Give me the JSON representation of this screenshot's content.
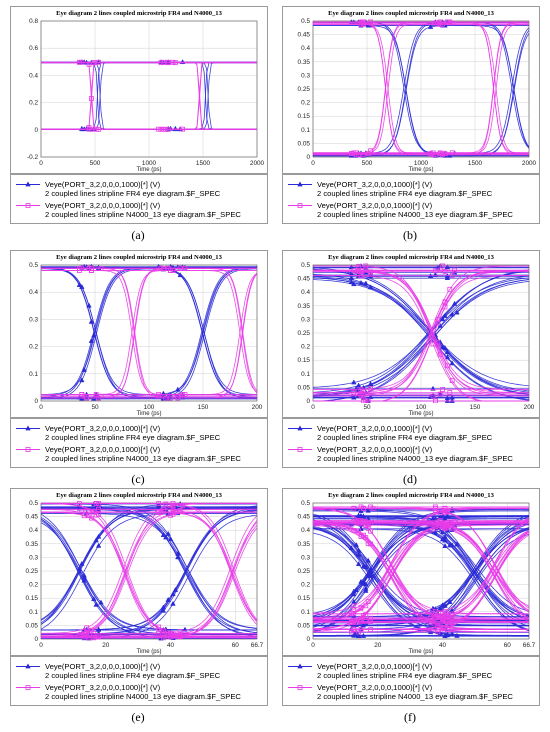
{
  "chart_data": [
    {
      "type": "line",
      "panel": "a",
      "caption": "(a)",
      "title": "Eye diagram 2 lines coupled microstrip FR4 and N4000_13",
      "xlabel": "Time (ps)",
      "ylabel": "",
      "xlim": [
        0,
        2000
      ],
      "ylim": [
        -0.2,
        0.8
      ],
      "xticks": [
        "0",
        "500",
        "1000",
        "1500",
        "2000"
      ],
      "yticks": [
        "-0.2",
        "0",
        "0.2",
        "0.4",
        "0.6",
        "0.8"
      ],
      "grid": true,
      "eye": {
        "low": 0.005,
        "high": 0.495,
        "width": 2000,
        "period": 1000,
        "crossings": [
          500,
          1500
        ],
        "spread": 0.005
      },
      "series": [
        {
          "name": "Veye(PORT_3,2,0,0,0,1000)[*] (V)",
          "subtitle": "2 coupled lines stripline FR4 eye diagram.$F_SPEC",
          "color": "#2b2bd6",
          "marker": "triangle",
          "rise": 40,
          "offset": 40,
          "traces": 2
        },
        {
          "name": "Veye(PORT_3,2,0,0,0,1000)[*] (V)",
          "subtitle": "2 coupled lines stripline N4000_13  eye diagram.$F_SPEC",
          "color": "#e83ce8",
          "marker": "square",
          "rise": 40,
          "offset": -40,
          "traces": 2
        }
      ]
    },
    {
      "type": "line",
      "panel": "b",
      "caption": "(b)",
      "title": "Eye diagram 2 lines coupled microstrip FR4 and N4000_13",
      "xlabel": "Time (ps)",
      "ylabel": "",
      "xlim": [
        0,
        2000
      ],
      "ylim": [
        0,
        0.5
      ],
      "xticks": [
        "0",
        "500",
        "1000",
        "1500",
        "2000"
      ],
      "yticks": [
        "0",
        "0.05",
        "0.1",
        "0.15",
        "0.2",
        "0.25",
        "0.3",
        "0.35",
        "0.4",
        "0.45",
        "0.5"
      ],
      "grid": true,
      "eye": {
        "low": 0.01,
        "high": 0.49,
        "width": 2000,
        "period": 1000,
        "crossings": [
          600,
          1600
        ],
        "spread": 0.015
      },
      "series": [
        {
          "name": "Veye(PORT_3,2,0,0,0,1000)[*] (V)",
          "subtitle": "2 coupled lines stripline FR4 eye diagram.$F_SPEC",
          "color": "#2b2bd6",
          "marker": "triangle",
          "rise": 300,
          "offset": 250,
          "traces": 3
        },
        {
          "name": "Veye(PORT_3,2,0,0,0,1000)[*] (V)",
          "subtitle": "2 coupled lines stripline N4000_13  eye diagram.$F_SPEC",
          "color": "#e83ce8",
          "marker": "square",
          "rise": 200,
          "offset": 80,
          "traces": 3
        }
      ]
    },
    {
      "type": "line",
      "panel": "c",
      "caption": "(c)",
      "title": "Eye diagram 2 lines coupled microstrip FR4 and N4000_13",
      "xlabel": "Time (ps)",
      "ylabel": "",
      "xlim": [
        0,
        200
      ],
      "ylim": [
        0,
        0.5
      ],
      "xticks": [
        "0",
        "50",
        "100",
        "150",
        "200"
      ],
      "yticks": [
        "0",
        "0.1",
        "0.2",
        "0.3",
        "0.4",
        "0.5"
      ],
      "grid": true,
      "eye": {
        "low": 0.015,
        "high": 0.485,
        "width": 200,
        "period": 100,
        "crossings": [
          50,
          150
        ],
        "spread": 0.02
      },
      "series": [
        {
          "name": "Veye(PORT_3,2,0,0,0,1000)[*] (V)",
          "subtitle": "2 coupled lines stripline FR4 eye diagram.$F_SPEC",
          "color": "#2b2bd6",
          "marker": "triangle",
          "rise": 45,
          "offset": 0,
          "traces": 4
        },
        {
          "name": "Veye(PORT_3,2,0,0,0,1000)[*] (V)",
          "subtitle": "2 coupled lines stripline N4000_13  eye diagram.$F_SPEC",
          "color": "#e83ce8",
          "marker": "square",
          "rise": 25,
          "offset": 35,
          "traces": 3
        }
      ]
    },
    {
      "type": "line",
      "panel": "d",
      "caption": "(d)",
      "title": "Eye diagram 2 lines coupled microstrip FR4 and N4000_13",
      "xlabel": "Time (ps)",
      "ylabel": "",
      "xlim": [
        0,
        200
      ],
      "ylim": [
        0,
        0.5
      ],
      "xticks": [
        "0",
        "50",
        "100",
        "150",
        "200"
      ],
      "yticks": [
        "0",
        "0.05",
        "0.1",
        "0.15",
        "0.2",
        "0.25",
        "0.3",
        "0.35",
        "0.4",
        "0.45",
        "0.5"
      ],
      "grid": true,
      "eye": {
        "low": 0.02,
        "high": 0.48,
        "width": 200,
        "period": 200,
        "crossings": [
          110
        ],
        "spread": 0.06
      },
      "series": [
        {
          "name": "Veye(PORT_3,2,0,0,0,1000)[*] (V)",
          "subtitle": "2 coupled lines stripline FR4 eye diagram.$F_SPEC",
          "color": "#2b2bd6",
          "marker": "triangle",
          "rise": 150,
          "offset": 0,
          "traces": 8
        },
        {
          "name": "Veye(PORT_3,2,0,0,0,1000)[*] (V)",
          "subtitle": "2 coupled lines stripline N4000_13  eye diagram.$F_SPEC",
          "color": "#e83ce8",
          "marker": "square",
          "rise": 70,
          "offset": 0,
          "traces": 6
        }
      ]
    },
    {
      "type": "line",
      "panel": "e",
      "caption": "(e)",
      "title": "Eye diagram 2 lines coupled microstrip FR4 and N4000_13",
      "xlabel": "Time (ps)",
      "ylabel": "",
      "xlim": [
        0,
        66.7
      ],
      "ylim": [
        0,
        0.5
      ],
      "xticks": [
        "0",
        "20",
        "40",
        "60",
        "66.7"
      ],
      "yticks": [
        "0",
        "0.05",
        "0.1",
        "0.15",
        "0.2",
        "0.25",
        "0.3",
        "0.35",
        "0.4",
        "0.45",
        "0.5"
      ],
      "grid": true,
      "eye": {
        "low": 0.02,
        "high": 0.48,
        "width": 66.7,
        "period": 33.35,
        "crossings": [
          14,
          47
        ],
        "spread": 0.04
      },
      "series": [
        {
          "name": "Veye(PORT_3,2,0,0,0,1000)[*] (V)",
          "subtitle": "2 coupled lines stripline FR4 eye diagram.$F_SPEC",
          "color": "#2b2bd6",
          "marker": "triangle",
          "rise": 30,
          "offset": -2,
          "traces": 6
        },
        {
          "name": "Veye(PORT_3,2,0,0,0,1000)[*] (V)",
          "subtitle": "2 coupled lines stripline N4000_13  eye diagram.$F_SPEC",
          "color": "#e83ce8",
          "marker": "square",
          "rise": 22,
          "offset": 12,
          "traces": 5
        }
      ]
    },
    {
      "type": "line",
      "panel": "f",
      "caption": "(f)",
      "title": "Eye diagram 2 lines coupled microstrip FR4 and N4000_13",
      "xlabel": "Time (ps)",
      "ylabel": "",
      "xlim": [
        0,
        66.7
      ],
      "ylim": [
        0,
        0.5
      ],
      "xticks": [
        "0",
        "20",
        "40",
        "60",
        "66.7"
      ],
      "yticks": [
        "0",
        "0.05",
        "0.1",
        "0.15",
        "0.2",
        "0.25",
        "0.3",
        "0.35",
        "0.4",
        "0.45",
        "0.5"
      ],
      "grid": true,
      "eye": {
        "low": 0.05,
        "high": 0.45,
        "width": 66.7,
        "period": 33.35,
        "crossings": [
          18,
          50
        ],
        "spread": 0.09
      },
      "series": [
        {
          "name": "Veye(PORT_3,2,0,0,0,1000)[*] (V)",
          "subtitle": "2 coupled lines stripline FR4 eye diagram.$F_SPEC",
          "color": "#2b2bd6",
          "marker": "triangle",
          "rise": 34,
          "offset": 0,
          "traces": 12
        },
        {
          "name": "Veye(PORT_3,2,0,0,0,1000)[*] (V)",
          "subtitle": "2 coupled lines stripline N4000_13  eye diagram.$F_SPEC",
          "color": "#e83ce8",
          "marker": "square",
          "rise": 28,
          "offset": 6,
          "traces": 10
        }
      ]
    }
  ]
}
